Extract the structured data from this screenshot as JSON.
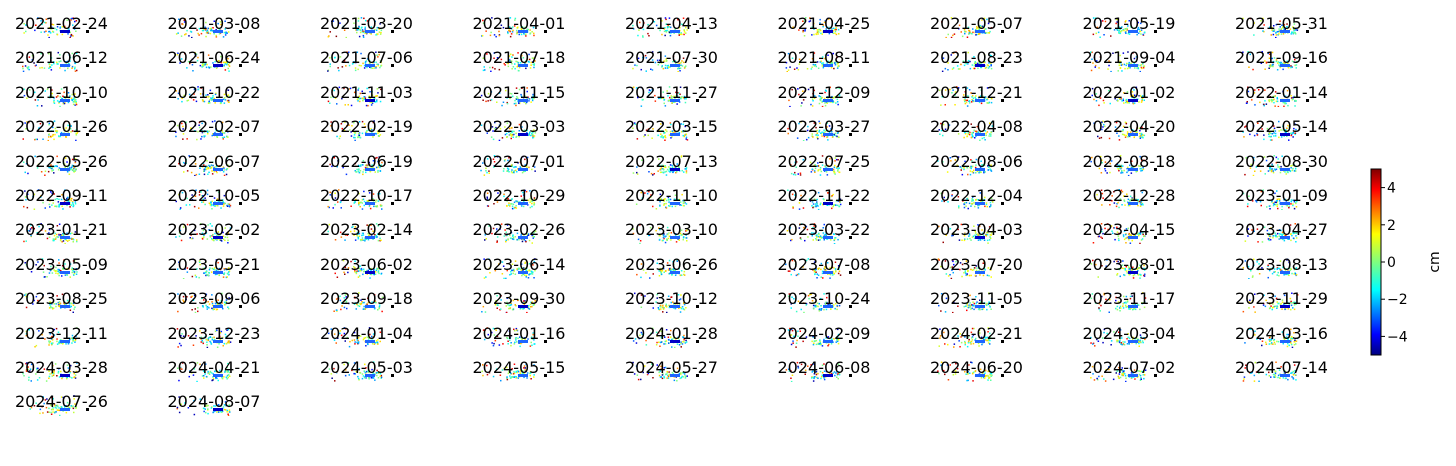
{
  "chart_data": {
    "type": "heatmap",
    "description_type": "small-multiples displacement maps",
    "colormap": "jet",
    "colorbar": {
      "label": "cm",
      "ylim": [
        -5,
        5
      ],
      "ticks": [
        4,
        2,
        0,
        -2,
        -4
      ],
      "tick_labels": [
        "4",
        "2",
        "0",
        "−2",
        "−4"
      ]
    },
    "dates": [
      "2021-02-24",
      "2021-03-08",
      "2021-03-20",
      "2021-04-01",
      "2021-04-13",
      "2021-04-25",
      "2021-05-07",
      "2021-05-19",
      "2021-05-31",
      "2021-06-12",
      "2021-06-24",
      "2021-07-06",
      "2021-07-18",
      "2021-07-30",
      "2021-08-11",
      "2021-08-23",
      "2021-09-04",
      "2021-09-16",
      "2021-10-10",
      "2021-10-22",
      "2021-11-03",
      "2021-11-15",
      "2021-11-27",
      "2021-12-09",
      "2021-12-21",
      "2022-01-02",
      "2022-01-14",
      "2022-01-26",
      "2022-02-07",
      "2022-02-19",
      "2022-03-03",
      "2022-03-15",
      "2022-03-27",
      "2022-04-08",
      "2022-04-20",
      "2022-05-14",
      "2022-05-26",
      "2022-06-07",
      "2022-06-19",
      "2022-07-01",
      "2022-07-13",
      "2022-07-25",
      "2022-08-06",
      "2022-08-18",
      "2022-08-30",
      "2022-09-11",
      "2022-10-05",
      "2022-10-17",
      "2022-10-29",
      "2022-11-10",
      "2022-11-22",
      "2022-12-04",
      "2022-12-28",
      "2023-01-09",
      "2023-01-21",
      "2023-02-02",
      "2023-02-14",
      "2023-02-26",
      "2023-03-10",
      "2023-03-22",
      "2023-04-03",
      "2023-04-15",
      "2023-04-27",
      "2023-05-09",
      "2023-05-21",
      "2023-06-02",
      "2023-06-14",
      "2023-06-26",
      "2023-07-08",
      "2023-07-20",
      "2023-08-01",
      "2023-08-13",
      "2023-08-25",
      "2023-09-06",
      "2023-09-18",
      "2023-09-30",
      "2023-10-12",
      "2023-10-24",
      "2023-11-05",
      "2023-11-17",
      "2023-11-29",
      "2023-12-11",
      "2023-12-23",
      "2024-01-04",
      "2024-01-16",
      "2024-01-28",
      "2024-02-09",
      "2024-02-21",
      "2024-03-04",
      "2024-03-16",
      "2024-03-28",
      "2024-04-21",
      "2024-05-03",
      "2024-05-15",
      "2024-05-27",
      "2024-06-08",
      "2024-06-20",
      "2024-07-02",
      "2024-07-14",
      "2024-07-26",
      "2024-08-07"
    ]
  }
}
